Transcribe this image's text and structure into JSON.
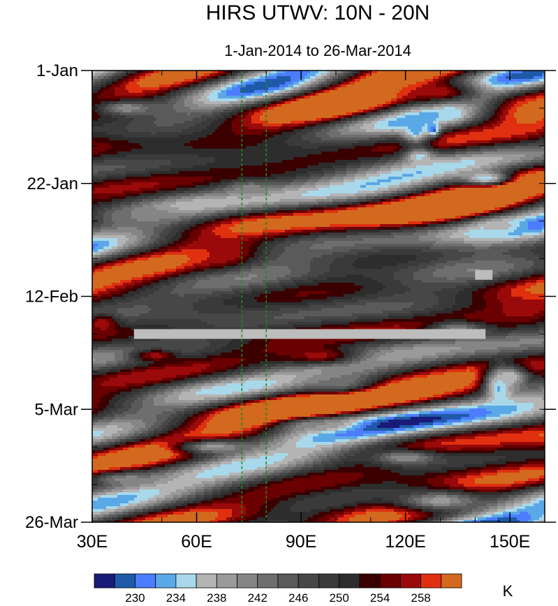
{
  "chart_data": {
    "type": "heatmap",
    "title": "HIRS UTWV: 10N - 20N",
    "subtitle": "1-Jan-2014 to 26-Mar-2014",
    "x_axis": {
      "range": [
        30,
        160
      ],
      "ticks": [
        {
          "value": 30,
          "label": "30E"
        },
        {
          "value": 60,
          "label": "60E"
        },
        {
          "value": 90,
          "label": "90E"
        },
        {
          "value": 120,
          "label": "120E"
        },
        {
          "value": 150,
          "label": "150E"
        }
      ],
      "minor_step": 10
    },
    "y_axis": {
      "range": [
        "2014-01-01",
        "2014-03-26"
      ],
      "ticks": [
        {
          "value": "2014-01-01",
          "label": "1-Jan"
        },
        {
          "value": "2014-01-22",
          "label": "22-Jan"
        },
        {
          "value": "2014-02-12",
          "label": "12-Feb"
        },
        {
          "value": "2014-03-05",
          "label": "5-Mar"
        },
        {
          "value": "2014-03-26",
          "label": "26-Mar"
        }
      ],
      "minor_step_days": 7
    },
    "reference_lines_lon": [
      73,
      80
    ],
    "colorbar": {
      "unit": "K",
      "levels": [
        228,
        230,
        232,
        234,
        236,
        238,
        240,
        242,
        244,
        246,
        248,
        250,
        252,
        254,
        256,
        258,
        260
      ],
      "labels": [
        "230",
        "234",
        "238",
        "242",
        "246",
        "250",
        "254",
        "258"
      ],
      "colors": [
        "#1a1a7a",
        "#1f5aa8",
        "#4d7dff",
        "#5aa8e6",
        "#a8d8ea",
        "#b4b4b4",
        "#9a9a9a",
        "#858585",
        "#6e6e6e",
        "#5a5a5a",
        "#474747",
        "#3a3a3a",
        "#2d2d2d",
        "#3a0000",
        "#6a0000",
        "#9a0a0a",
        "#e03010",
        "#d2691e"
      ]
    },
    "missing_segments": [
      {
        "lon": [
          42,
          143
        ],
        "date": "2014-02-19"
      },
      {
        "lon": [
          140,
          145
        ],
        "date": "2014-02-08"
      }
    ],
    "features": [
      {
        "lon": 155,
        "date": "2014-01-09",
        "value": 261,
        "spread": [
          6,
          2.5
        ]
      },
      {
        "lon": 128,
        "date": "2014-01-05",
        "value": 258,
        "spread": [
          10,
          1.5
        ]
      },
      {
        "lon": 67,
        "date": "2014-02-04",
        "value": 258,
        "spread": [
          6,
          1.8
        ]
      },
      {
        "lon": 155,
        "date": "2014-02-14",
        "value": 258,
        "spread": [
          5,
          1.5
        ]
      },
      {
        "lon": 33,
        "date": "2014-02-17",
        "value": 258,
        "spread": [
          3,
          1.2
        ]
      },
      {
        "lon": 48,
        "date": "2014-02-23",
        "value": 257,
        "spread": [
          5,
          0.9
        ]
      },
      {
        "lon": 95,
        "date": "2014-02-23",
        "value": 257,
        "spread": [
          8,
          1.2
        ]
      },
      {
        "lon": 123,
        "date": "2014-01-12",
        "value": 233,
        "spread": [
          3,
          2
        ]
      },
      {
        "lon": 128,
        "date": "2014-01-12",
        "value": 229,
        "spread": [
          1.2,
          0.8
        ]
      },
      {
        "lon": 133,
        "date": "2014-01-09",
        "value": 234,
        "spread": [
          3,
          1
        ]
      },
      {
        "lon": 143,
        "date": "2014-01-21",
        "value": 234,
        "spread": [
          5,
          1
        ]
      },
      {
        "lon": 124,
        "date": "2014-01-17",
        "value": 235,
        "spread": [
          3,
          1
        ]
      },
      {
        "lon": 147,
        "date": "2014-03-01",
        "value": 233,
        "spread": [
          3,
          2.5
        ]
      },
      {
        "lon": 150,
        "date": "2014-02-27",
        "value": 236,
        "spread": [
          4,
          1.5
        ]
      },
      {
        "lon": 147,
        "date": "2014-01-30",
        "value": 237,
        "spread": [
          5,
          1
        ]
      },
      {
        "lon": 65,
        "date": "2014-03-12",
        "value": 239,
        "spread": [
          8,
          1
        ]
      },
      {
        "lon": 40,
        "date": "2014-01-08",
        "value": 240,
        "spread": [
          6,
          1
        ]
      },
      {
        "lon": 95,
        "date": "2014-03-08",
        "value": 240,
        "spread": [
          8,
          1
        ]
      },
      {
        "lon": 130,
        "date": "2014-03-22",
        "value": 239,
        "spread": [
          10,
          1.5
        ]
      },
      {
        "lon": 120,
        "date": "2014-03-14",
        "value": 240,
        "spread": [
          7,
          1
        ]
      },
      {
        "lon": 45,
        "date": "2014-01-28",
        "value": 242,
        "spread": [
          8,
          1
        ]
      },
      {
        "lon": 75,
        "date": "2014-01-23",
        "value": 241,
        "spread": [
          5,
          1
        ]
      },
      {
        "lon": 100,
        "date": "2014-02-28",
        "value": 242,
        "spread": [
          8,
          1.5
        ]
      },
      {
        "lon": 135,
        "date": "2014-02-18",
        "value": 241,
        "spread": [
          6,
          1
        ]
      },
      {
        "lon": 40,
        "date": "2014-03-18",
        "value": 241,
        "spread": [
          8,
          1
        ]
      }
    ]
  }
}
